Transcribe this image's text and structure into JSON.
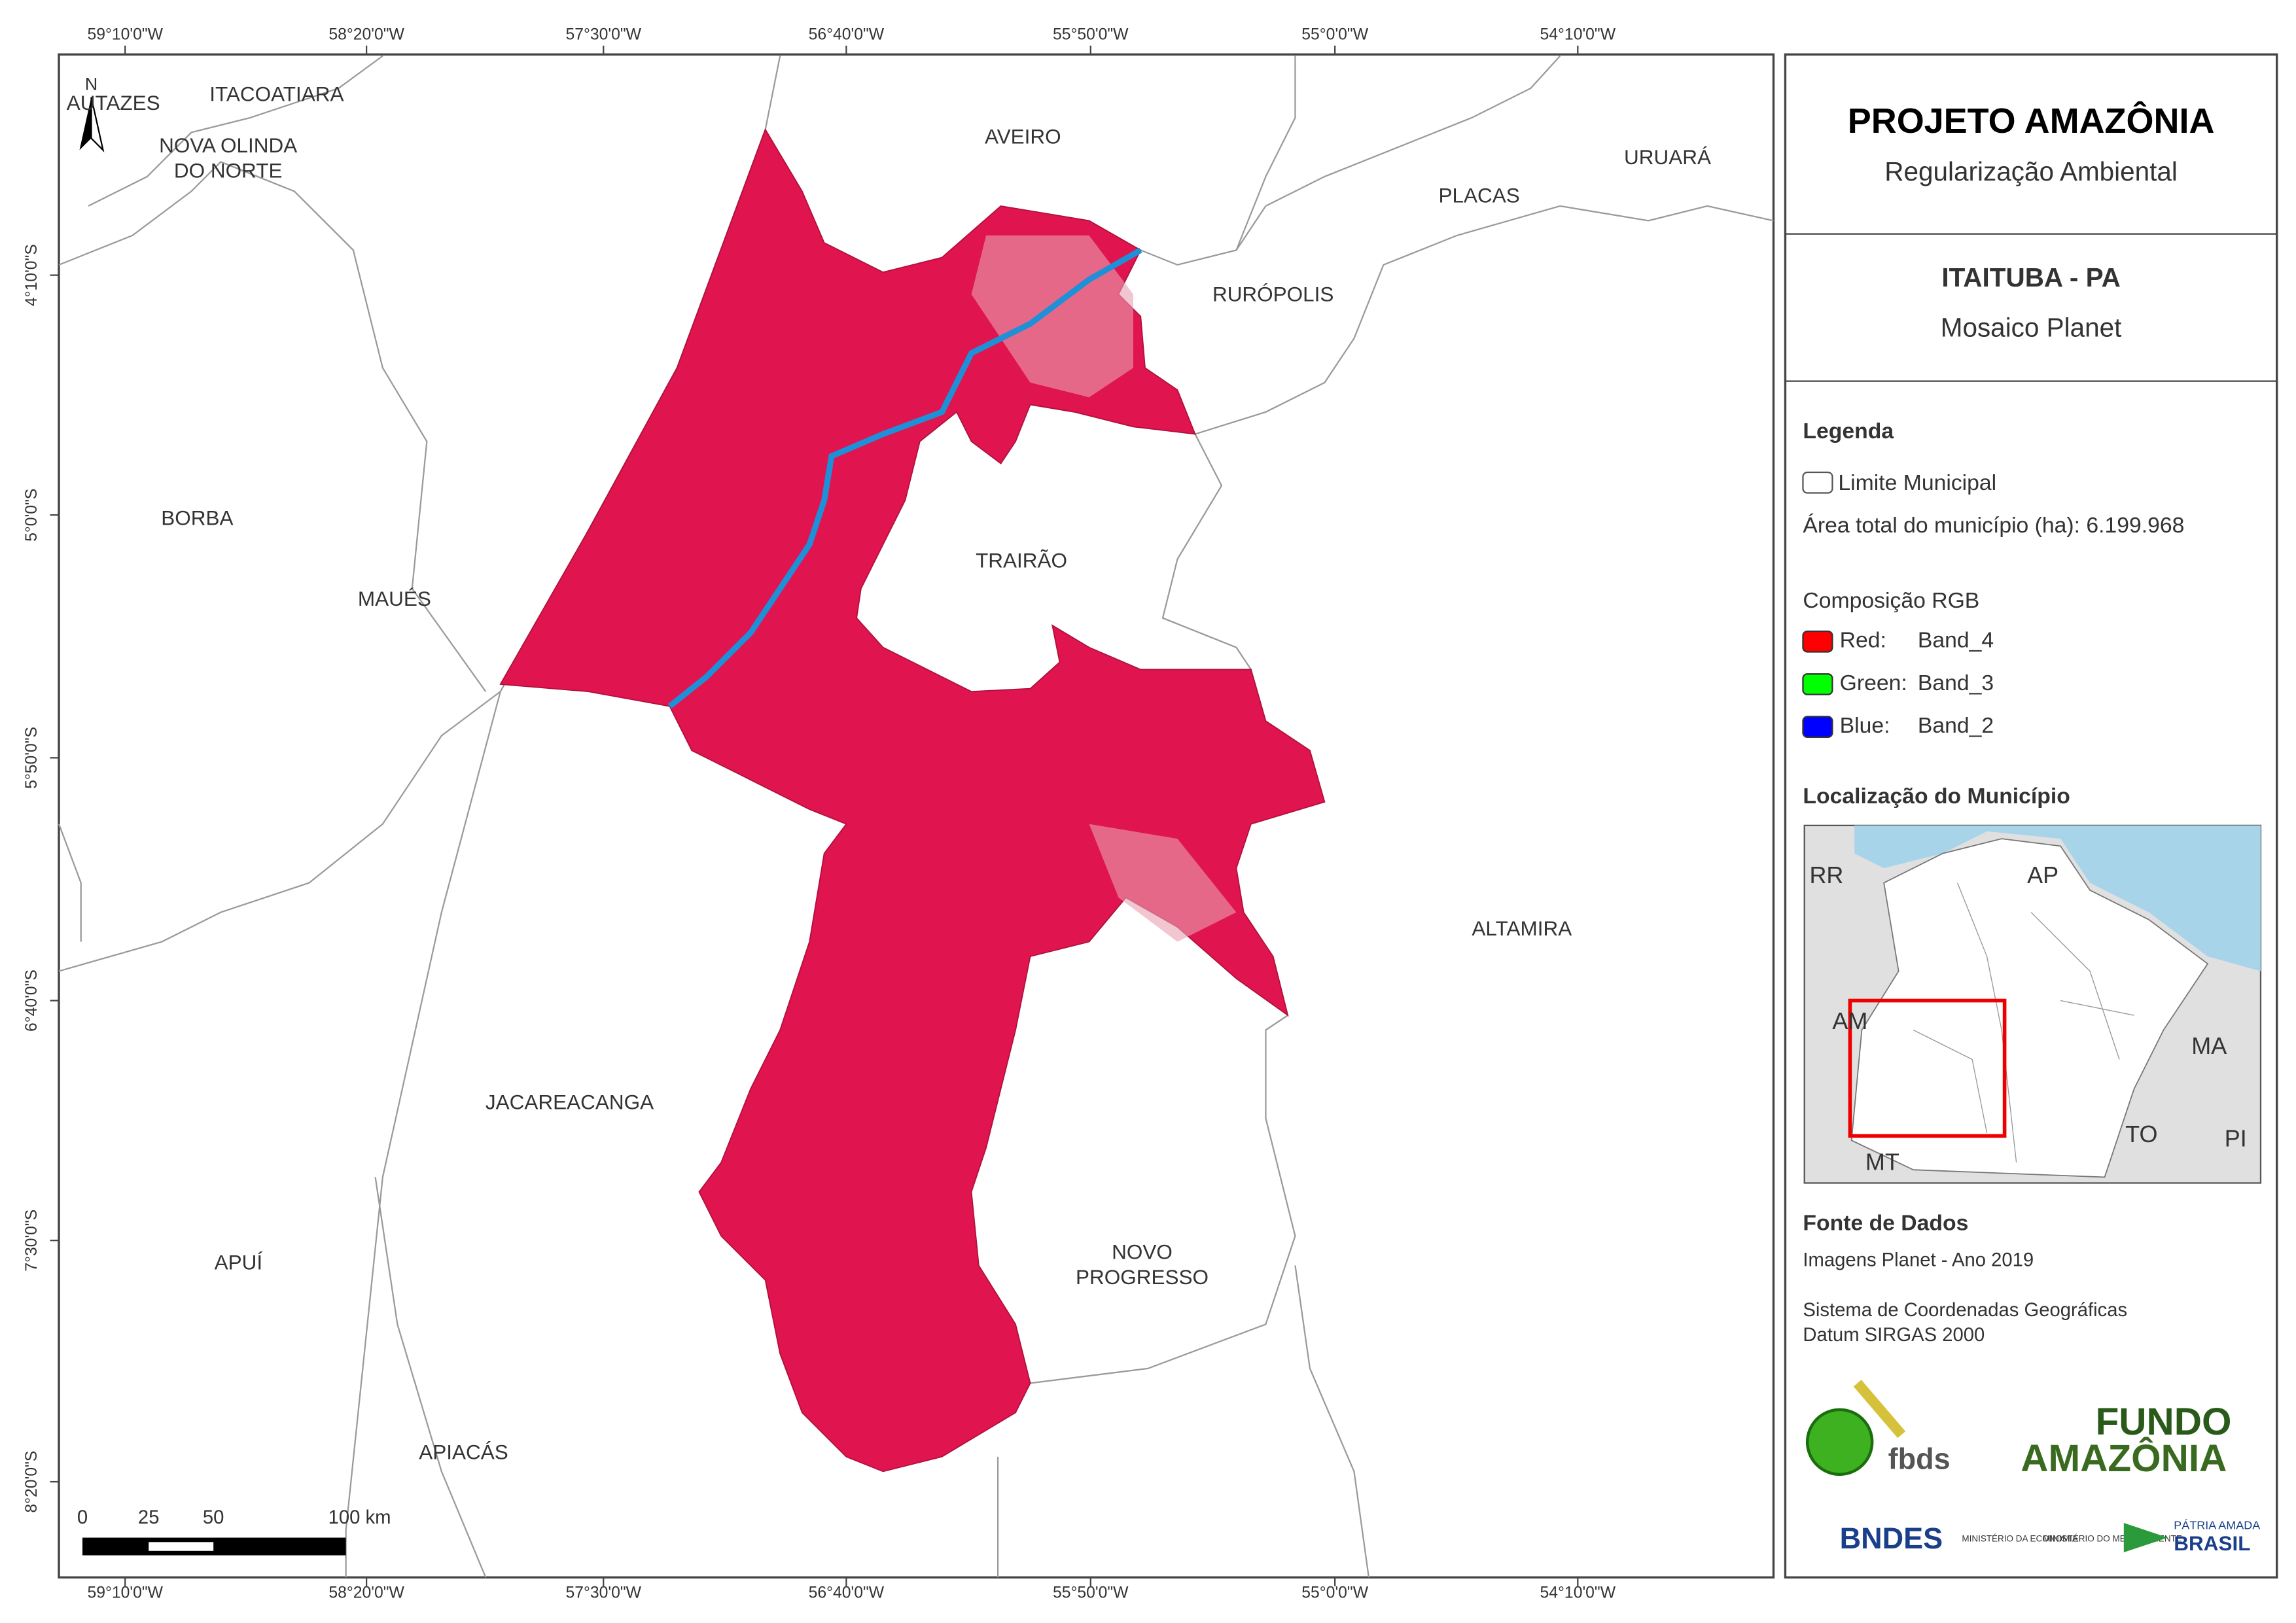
{
  "map": {
    "top_coords": [
      "59°10'0\"W",
      "58°20'0\"W",
      "57°30'0\"W",
      "56°40'0\"W",
      "55°50'0\"W",
      "55°0'0\"W",
      "54°10'0\"W"
    ],
    "bottom_coords": [
      "59°10'0\"W",
      "58°20'0\"W",
      "57°30'0\"W",
      "56°40'0\"W",
      "55°50'0\"W",
      "55°0'0\"W",
      "54°10'0\"W"
    ],
    "left_coords": [
      "4°10'0\"S",
      "5°0'0\"S",
      "5°50'0\"S",
      "6°40'0\"S",
      "7°30'0\"S",
      "8°20'0\"S"
    ],
    "north": "N",
    "places": [
      [
        "AUTAZES"
      ],
      [
        "ITACOATIARA"
      ],
      [
        "NOVA OLINDA",
        "DO NORTE"
      ],
      [
        "AVEIRO"
      ],
      [
        "URUARÁ"
      ],
      [
        "PLACAS"
      ],
      [
        "RURÓPOLIS"
      ],
      [
        "BORBA"
      ],
      [
        "TRAIRÃO"
      ],
      [
        "MAUÉS"
      ],
      [
        "ALTAMIRA"
      ],
      [
        "JACAREACANGA"
      ],
      [
        "NOVO",
        "PROGRESSO"
      ],
      [
        "APUÍ"
      ],
      [
        "APIACÁS"
      ]
    ],
    "scale_labels": [
      "0",
      "25",
      "50",
      "100 km"
    ]
  },
  "panel": {
    "title": "PROJETO AMAZÔNIA",
    "subtitle": "Regularização Ambiental",
    "municipality": "ITAITUBA - PA",
    "mosaic": "Mosaico Planet"
  },
  "legend": {
    "title": "Legenda",
    "boundary": "Limite Municipal",
    "area_text": "Área total do município (ha): 6.199.968",
    "rgb_title": "Composição RGB",
    "bands": [
      {
        "label": "Red:",
        "band": "Band_4",
        "color": "#ff0000"
      },
      {
        "label": "Green:",
        "band": "Band_3",
        "color": "#00ff00"
      },
      {
        "label": "Blue:",
        "band": "Band_2",
        "color": "#0000ff"
      }
    ]
  },
  "location": {
    "title": "Localização do Município",
    "labels": [
      "RR",
      "AP",
      "AM",
      "MA",
      "TO",
      "MT",
      "PI"
    ]
  },
  "sources": {
    "title": "Fonte de Dados",
    "lines": [
      "Imagens Planet - Ano 2019",
      "Sistema de Coordenadas Geográficas",
      "Datum SIRGAS 2000"
    ]
  },
  "logos": {
    "fbds": "fbds",
    "fundo": "FUNDO",
    "amazonia": "AMAZÔNIA",
    "bndes": "BNDES",
    "min1": "MINISTÉRIO DA ECONOMIA",
    "min2": "MINISTÉRIO DO MEIO AMBIENTE",
    "patria": "PÁTRIA AMADA",
    "brasil": "BRASIL"
  }
}
